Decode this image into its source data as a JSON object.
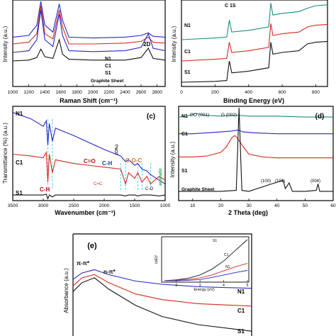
{
  "colors": {
    "black": "#111111",
    "red": "#d42a1e",
    "blue": "#2626c8",
    "teal": "#1e8c7c",
    "orange": "#e07a10",
    "green": "#1fa84a",
    "darkred": "#b01010",
    "darkblue": "#1a3a9a"
  },
  "chart_data": [
    {
      "type": "line",
      "panel": "a",
      "xlabel": "Raman Shift (cm⁻¹)",
      "ylabel": "Intensity (a.u.)",
      "xlim": [
        1000,
        2900
      ],
      "xticks": [
        "1000",
        "1200",
        "1400",
        "1600",
        "1800",
        "2000",
        "2200",
        "2400",
        "2600",
        "2800"
      ],
      "annotations": [
        "2D"
      ],
      "series": [
        {
          "name": "N1",
          "color": "#2626c8",
          "x": [
            1000,
            1200,
            1300,
            1350,
            1400,
            1500,
            1580,
            1620,
            1700,
            2000,
            2400,
            2600,
            2690,
            2750,
            2900
          ],
          "y": [
            0.58,
            0.6,
            0.72,
            1.0,
            0.72,
            0.64,
            0.97,
            0.78,
            0.58,
            0.57,
            0.58,
            0.6,
            0.63,
            0.59,
            0.58
          ]
        },
        {
          "name": "C1",
          "color": "#d42a1e",
          "x": [
            1000,
            1200,
            1300,
            1350,
            1400,
            1500,
            1580,
            1620,
            1700,
            2000,
            2400,
            2600,
            2690,
            2750,
            2900
          ],
          "y": [
            0.5,
            0.52,
            0.62,
            0.95,
            0.62,
            0.56,
            0.9,
            0.7,
            0.5,
            0.5,
            0.51,
            0.53,
            0.58,
            0.52,
            0.51
          ]
        },
        {
          "name": "S1",
          "color": "#2626c8",
          "x": [
            1000,
            1200,
            1300,
            1350,
            1400,
            1500,
            1580,
            1620,
            1700,
            2000,
            2400,
            2600,
            2690,
            2750,
            2900
          ],
          "y": [
            0.4,
            0.42,
            0.55,
            0.9,
            0.55,
            0.47,
            0.85,
            0.6,
            0.42,
            0.41,
            0.42,
            0.46,
            0.62,
            0.45,
            0.42
          ]
        },
        {
          "name": "Graphite Sheet",
          "color": "#111111",
          "x": [
            1000,
            1200,
            1300,
            1350,
            1400,
            1500,
            1580,
            1620,
            1700,
            2000,
            2400,
            2600,
            2690,
            2750,
            2900
          ],
          "y": [
            0.3,
            0.31,
            0.34,
            0.44,
            0.35,
            0.33,
            0.55,
            0.38,
            0.32,
            0.31,
            0.31,
            0.34,
            0.45,
            0.33,
            0.31
          ]
        }
      ]
    },
    {
      "type": "line",
      "panel": "b",
      "xlabel": "Binding Energy (eV)",
      "ylabel": "Intensity (a.u.)",
      "xlim": [
        0,
        870
      ],
      "xticks": [
        "0",
        "200",
        "400",
        "600",
        "800"
      ],
      "annotations": [
        "C 1S"
      ],
      "series": [
        {
          "name": "N1",
          "color": "#1e8c7c",
          "x": [
            0,
            200,
            270,
            285,
            300,
            400,
            520,
            532,
            545,
            600,
            700,
            750,
            800,
            870
          ],
          "y": [
            0.55,
            0.57,
            0.58,
            0.78,
            0.64,
            0.66,
            0.7,
            0.98,
            0.84,
            0.86,
            0.88,
            0.92,
            0.95,
            0.96
          ]
        },
        {
          "name": "C1",
          "color": "#d42a1e",
          "x": [
            0,
            200,
            270,
            285,
            300,
            400,
            520,
            532,
            545,
            600,
            700,
            750,
            800,
            870
          ],
          "y": [
            0.3,
            0.32,
            0.33,
            0.52,
            0.4,
            0.42,
            0.46,
            0.74,
            0.6,
            0.62,
            0.64,
            0.7,
            0.72,
            0.73
          ]
        },
        {
          "name": "S1",
          "color": "#111111",
          "x": [
            0,
            200,
            270,
            285,
            300,
            400,
            520,
            532,
            545,
            600,
            700,
            750,
            800,
            870
          ],
          "y": [
            0.05,
            0.06,
            0.07,
            0.3,
            0.16,
            0.18,
            0.22,
            0.52,
            0.38,
            0.4,
            0.42,
            0.5,
            0.52,
            0.53
          ]
        }
      ]
    },
    {
      "type": "line",
      "panel": "c",
      "xlabel": "Wavenumber (cm⁻¹)",
      "ylabel": "Transmittance (%) (a.u.)",
      "xlim": [
        3500,
        1000
      ],
      "xticks": [
        "3500",
        "3000",
        "2500",
        "2000",
        "1500",
        "1000"
      ],
      "annotations": [
        "C-H",
        "C-H",
        "C=O",
        "C=C",
        "C-H",
        "(CH₂)",
        "C-O-C",
        "C-O",
        "aromatic"
      ],
      "series": [
        {
          "name": "N1",
          "color": "#2626c8",
          "x": [
            3500,
            3200,
            3000,
            2950,
            2925,
            2900,
            2850,
            2800,
            2500,
            2000,
            1730,
            1650,
            1600,
            1500,
            1450,
            1380,
            1300,
            1240,
            1100,
            1000
          ],
          "y": [
            0.95,
            0.88,
            0.8,
            0.86,
            0.6,
            0.83,
            0.64,
            0.78,
            0.7,
            0.55,
            0.48,
            0.42,
            0.44,
            0.38,
            0.4,
            0.34,
            0.32,
            0.28,
            0.22,
            0.18
          ]
        },
        {
          "name": "C1",
          "color": "#d42a1e",
          "x": [
            3500,
            3200,
            3000,
            2950,
            2925,
            2900,
            2850,
            2800,
            2500,
            2000,
            1730,
            1650,
            1600,
            1500,
            1450,
            1380,
            1300,
            1240,
            1100,
            1000
          ],
          "y": [
            0.5,
            0.48,
            0.46,
            0.52,
            0.2,
            0.5,
            0.3,
            0.44,
            0.4,
            0.36,
            0.34,
            0.18,
            0.3,
            0.24,
            0.3,
            0.2,
            0.26,
            0.18,
            0.26,
            0.22
          ]
        },
        {
          "name": "S1",
          "color": "#111111",
          "x": [
            3500,
            3200,
            3000,
            2950,
            2925,
            2900,
            2850,
            2800,
            2500,
            2000,
            1730,
            1650,
            1600,
            1500,
            1450,
            1380,
            1300,
            1240,
            1100,
            1000
          ],
          "y": [
            0.06,
            0.06,
            0.06,
            0.07,
            0.02,
            0.06,
            0.04,
            0.06,
            0.06,
            0.06,
            0.06,
            0.05,
            0.06,
            0.06,
            0.05,
            0.06,
            0.06,
            0.06,
            0.05,
            0.06
          ]
        }
      ]
    },
    {
      "type": "line",
      "panel": "d",
      "xlabel": "2 Theta (deg)",
      "ylabel": "Intensity (a.u.)",
      "xlim": [
        5,
        60
      ],
      "xticks": [
        "10",
        "20",
        "30",
        "40",
        "50",
        "60"
      ],
      "annotations": [
        "GO (001)",
        "G (002)",
        "(100)",
        "(101)",
        "(004)"
      ],
      "series": [
        {
          "name": "N1",
          "color": "#1e8c7c",
          "x": [
            5,
            8,
            11,
            14,
            20,
            26,
            30,
            40,
            50,
            60
          ],
          "y": [
            0.9,
            0.91,
            0.94,
            0.92,
            0.91,
            0.92,
            0.91,
            0.91,
            0.9,
            0.9
          ]
        },
        {
          "name": "C1",
          "color": "#2626c8",
          "x": [
            5,
            10,
            15,
            20,
            24,
            26,
            28,
            32,
            40,
            50,
            60
          ],
          "y": [
            0.72,
            0.72,
            0.73,
            0.74,
            0.75,
            0.76,
            0.74,
            0.73,
            0.72,
            0.72,
            0.72
          ]
        },
        {
          "name": "S1",
          "color": "#d42a1e",
          "x": [
            5,
            10,
            15,
            20,
            22,
            24,
            25,
            26,
            28,
            30,
            35,
            40,
            50,
            60
          ],
          "y": [
            0.47,
            0.47,
            0.48,
            0.52,
            0.58,
            0.68,
            0.7,
            0.67,
            0.58,
            0.5,
            0.47,
            0.46,
            0.46,
            0.46
          ]
        },
        {
          "name": "Graphite Sheet",
          "color": "#111111",
          "x": [
            5,
            20,
            25.5,
            26.5,
            27.5,
            30,
            42.2,
            43,
            44.3,
            45.5,
            50,
            54,
            54.6,
            55.2,
            60
          ],
          "y": [
            0.1,
            0.1,
            0.11,
            1.0,
            0.11,
            0.1,
            0.22,
            0.13,
            0.19,
            0.1,
            0.1,
            0.11,
            0.18,
            0.1,
            0.1
          ]
        }
      ]
    },
    {
      "type": "line",
      "panel": "e",
      "ylabel": "Absorbance (a.u.)",
      "annotations": [
        "π-π*",
        "n-π*"
      ],
      "series": [
        {
          "name": "N1",
          "color": "#2626c8",
          "x": [
            0,
            0.05,
            0.12,
            0.2,
            0.35,
            0.5,
            0.7,
            1.0
          ],
          "y": [
            0.7,
            0.78,
            0.82,
            0.76,
            0.68,
            0.64,
            0.61,
            0.59
          ]
        },
        {
          "name": "C1",
          "color": "#d42a1e",
          "x": [
            0,
            0.05,
            0.12,
            0.2,
            0.35,
            0.5,
            0.7,
            1.0
          ],
          "y": [
            0.62,
            0.72,
            0.76,
            0.66,
            0.52,
            0.45,
            0.4,
            0.37
          ]
        },
        {
          "name": "S1",
          "color": "#111111",
          "x": [
            0,
            0.05,
            0.12,
            0.2,
            0.35,
            0.5,
            0.7,
            1.0
          ],
          "y": [
            0.55,
            0.66,
            0.72,
            0.58,
            0.38,
            0.24,
            0.14,
            0.06
          ]
        }
      ],
      "inset": {
        "xlabel": "Energy (eV)",
        "ylabel": "(αE)²",
        "xlim": [
          1.5,
          5
        ],
        "xticks": [
          "2",
          "3",
          "4",
          "5"
        ],
        "series": [
          {
            "name": "S1",
            "color": "#111111",
            "x": [
              1.5,
              2,
              2.5,
              3,
              3.5,
              4,
              4.5,
              5
            ],
            "y": [
              0.0,
              0.02,
              0.06,
              0.14,
              0.28,
              0.48,
              0.74,
              1.0
            ]
          },
          {
            "name": "C1",
            "color": "#d42a1e",
            "x": [
              1.5,
              2,
              2.5,
              3,
              3.5,
              4,
              4.5,
              5
            ],
            "y": [
              0.0,
              0.01,
              0.03,
              0.07,
              0.14,
              0.24,
              0.34,
              0.42
            ]
          },
          {
            "name": "N1",
            "color": "#2626c8",
            "x": [
              1.5,
              2,
              2.5,
              3,
              3.5,
              4,
              4.5,
              5
            ],
            "y": [
              0.0,
              0.0,
              0.01,
              0.03,
              0.08,
              0.14,
              0.2,
              0.25
            ]
          }
        ]
      }
    }
  ],
  "panels": {
    "a": {
      "xlabel": "Raman Shift (cm⁻¹)",
      "ylabel": "Intensity (a.u.)",
      "ann_2d": "2D",
      "lbl_n1": "N1",
      "lbl_c1": "C1",
      "lbl_s1": "S1",
      "lbl_gs": "Graphite Sheet"
    },
    "b": {
      "xlabel": "Binding Energy (eV)",
      "ylabel": "Intensity (a.u.)",
      "ann_c1s": "C 1S",
      "lbl_n1": "N1",
      "lbl_c1": "C1",
      "lbl_s1": "S1"
    },
    "c": {
      "tag": "(c)",
      "xlabel": "Wavenumber (cm⁻¹)",
      "ylabel": "Transmittance (%) (a.u.)",
      "lbl_n1": "N1",
      "lbl_c1": "C1",
      "lbl_s1": "S1",
      "ann_ch1": "C-H",
      "ann_ch2": "C-H",
      "ann_co": "C=O",
      "ann_cc": "C=C",
      "ann_ch3": "C-H",
      "ann_ch2g": "(CH₂)",
      "ann_coc": "C-O-C",
      "ann_co2": "C-O",
      "ann_arom": "aromatic"
    },
    "d": {
      "tag": "(d)",
      "xlabel": "2 Theta (deg)",
      "ylabel": "Intensity (a.u.)",
      "lbl_n1": "N1",
      "lbl_c1": "C1",
      "lbl_s1": "S1",
      "lbl_gs": "Graphite Sheet",
      "ann_go": "GO (001)",
      "ann_g": "G (002)",
      "ann_100": "(100)",
      "ann_101": "(101)",
      "ann_004": "(004)"
    },
    "e": {
      "tag": "(e)",
      "ylabel": "Absorbance (a.u.)",
      "ann_pp": "π-π*",
      "ann_np": "n-π*",
      "lbl_n1": "N1",
      "lbl_c1": "C1",
      "lbl_s1": "S1",
      "inset_xlabel": "Energy (eV)",
      "inset_ylabel": "(αE)²",
      "inset_s1": "S1",
      "inset_c1": "C1",
      "inset_n1": "N1"
    }
  }
}
